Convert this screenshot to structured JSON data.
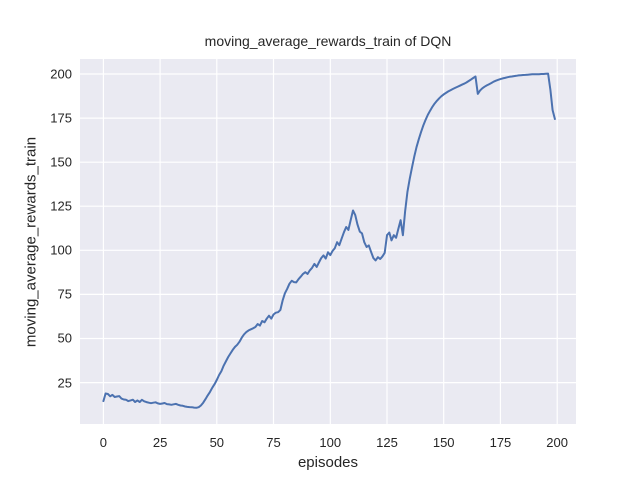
{
  "figure": {
    "kind": "matplotlib-seaborn line plot"
  },
  "style": {
    "figure_bg": "#ffffff",
    "axes_bg": "#eaeaf2",
    "grid_color": "#ffffff",
    "line_color": "#4c72b0",
    "text_color": "#262626",
    "line_width": 2
  },
  "chart_data": {
    "type": "line",
    "title": "moving_average_rewards_train of DQN",
    "xlabel": "episodes",
    "ylabel": "moving_average_rewards_train",
    "legend": "none",
    "grid": true,
    "xlim": [
      -10.3,
      208.3
    ],
    "ylim": [
      1.5,
      208.5
    ],
    "xticks": [
      0,
      25,
      50,
      75,
      100,
      125,
      150,
      175,
      200
    ],
    "yticks": [
      25,
      50,
      75,
      100,
      125,
      150,
      175,
      200
    ],
    "x_start": 0,
    "x_step": 1,
    "series": [
      {
        "name": "moving_average_rewards_train",
        "color": "#4c72b0",
        "values": [
          14.5,
          18.8,
          18.5,
          17.2,
          18.0,
          16.8,
          17.1,
          17.3,
          15.9,
          15.4,
          15.2,
          14.5,
          14.9,
          15.3,
          14.0,
          14.9,
          14.0,
          15.2,
          14.4,
          13.9,
          13.6,
          13.3,
          13.6,
          13.8,
          13.2,
          12.9,
          13.1,
          13.4,
          12.8,
          12.6,
          12.4,
          12.7,
          12.9,
          12.4,
          12.0,
          11.8,
          11.4,
          11.2,
          11.1,
          11.0,
          10.8,
          10.7,
          11.0,
          12.0,
          13.6,
          15.6,
          17.7,
          19.7,
          22.1,
          24.1,
          26.5,
          29.3,
          31.5,
          34.5,
          37.0,
          39.5,
          41.5,
          43.5,
          45.2,
          46.4,
          48.2,
          50.5,
          52.3,
          53.6,
          54.6,
          55.2,
          55.8,
          56.5,
          58.2,
          57.3,
          59.9,
          59.2,
          61.2,
          62.9,
          61.3,
          63.6,
          64.6,
          64.9,
          66.2,
          71.5,
          75.6,
          78.2,
          81.0,
          82.7,
          82.0,
          81.8,
          83.6,
          85.1,
          86.6,
          87.6,
          86.6,
          88.6,
          90.1,
          92.3,
          90.6,
          93.1,
          95.6,
          97.1,
          95.3,
          98.9,
          97.3,
          99.6,
          101.2,
          104.6,
          102.9,
          106.6,
          110.2,
          113.2,
          111.6,
          117.2,
          122.6,
          120.1,
          114.6,
          110.6,
          109.6,
          104.6,
          101.9,
          102.8,
          99.1,
          95.6,
          94.3,
          96.1,
          95.1,
          96.6,
          98.6,
          108.6,
          110.1,
          105.6,
          108.6,
          107.1,
          112.1,
          117.1,
          108.6,
          122.0,
          133.0,
          140.5,
          147.0,
          153.0,
          158.5,
          163.0,
          167.0,
          170.8,
          174.0,
          176.8,
          179.2,
          181.4,
          183.2,
          184.8,
          186.2,
          187.4,
          188.4,
          189.3,
          190.1,
          190.8,
          191.5,
          192.1,
          192.7,
          193.3,
          193.9,
          194.5,
          195.2,
          196.0,
          196.8,
          197.7,
          198.6,
          188.7,
          190.6,
          191.9,
          192.8,
          193.5,
          194.2,
          194.9,
          195.6,
          196.2,
          196.7,
          197.1,
          197.5,
          197.8,
          198.1,
          198.4,
          198.6,
          198.8,
          199.0,
          199.2,
          199.3,
          199.4,
          199.5,
          199.6,
          199.7,
          199.8,
          199.8,
          199.9,
          199.9,
          200.0,
          200.0,
          200.1,
          200.2,
          191.0,
          179.5,
          174.5
        ]
      }
    ]
  }
}
